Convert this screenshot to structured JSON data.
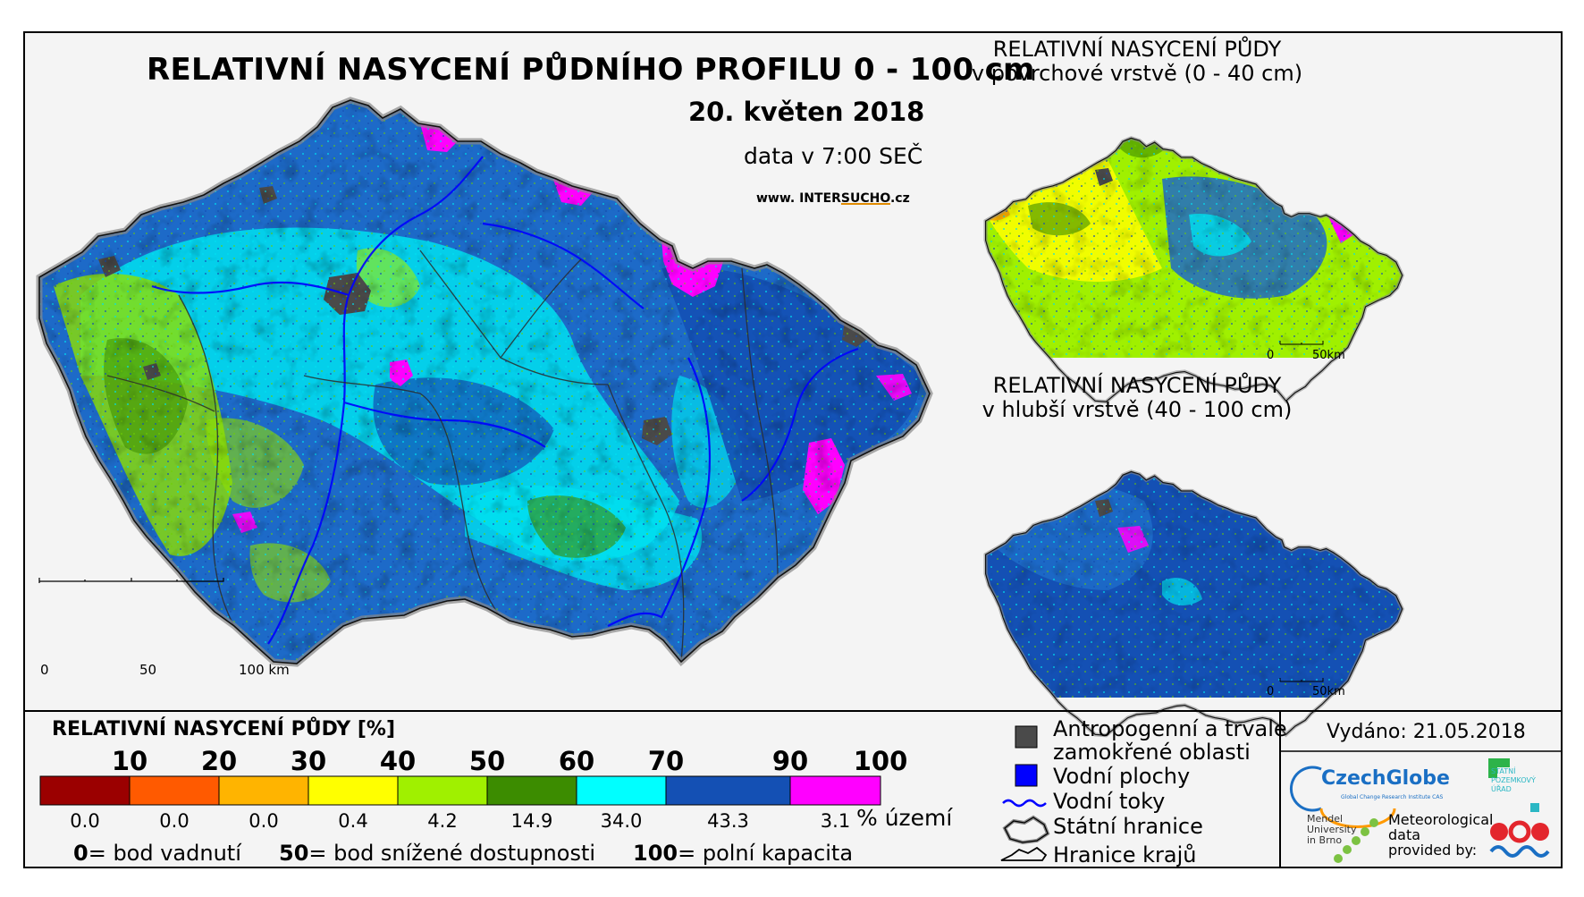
{
  "map": {
    "title": "RELATIVNÍ NASYCENÍ PŮDNÍHO PROFILU 0 - 100 cm",
    "date": "20. květen 2018",
    "data_time": "data v 7:00 SEČ",
    "website": {
      "prefix": "www. INTER",
      "highlight": "SUCHO",
      "suffix": ".cz"
    },
    "scale": {
      "ticks": [
        "0",
        "50",
        "100 km"
      ]
    }
  },
  "insets": [
    {
      "title_line1": "RELATIVNÍ NASYCENÍ PŮDY",
      "title_line2": "v povrchové vrstvě (0 - 40 cm)",
      "scale_ticks": [
        "0",
        "50km"
      ],
      "dominant": "yellow-green"
    },
    {
      "title_line1": "RELATIVNÍ NASYCENÍ PŮDY",
      "title_line2": "v hlubší vrstvě (40 - 100 cm)",
      "scale_ticks": [
        "0",
        "50km"
      ],
      "dominant": "blue"
    }
  ],
  "legend": {
    "title": "RELATIVNÍ NASYCENÍ PŮDY [%]",
    "ticks": [
      "10",
      "20",
      "30",
      "40",
      "50",
      "60",
      "70",
      "90",
      "100"
    ],
    "classes": [
      {
        "color": "#9b0000",
        "percent": "0.0"
      },
      {
        "color": "#ff5a00",
        "percent": "0.0"
      },
      {
        "color": "#ffb400",
        "percent": "0.0"
      },
      {
        "color": "#ffff00",
        "percent": "0.4"
      },
      {
        "color": "#a0f000",
        "percent": "4.2"
      },
      {
        "color": "#3c8c00",
        "percent": "14.9"
      },
      {
        "color": "#00ffff",
        "percent": "34.0"
      },
      {
        "color": "#1450b4",
        "percent": "43.3"
      },
      {
        "color": "#ff00ff",
        "percent": "3.1"
      }
    ],
    "unit": "% území",
    "notes": [
      {
        "value": "0",
        "text": "= bod vadnutí"
      },
      {
        "value": "50",
        "text": "= bod snížené dostupnosti"
      },
      {
        "value": "100",
        "text": "= polní kapacita"
      }
    ]
  },
  "symbols": [
    {
      "icon": "gray-square-icon",
      "color": "#4a4a4a",
      "label_line1": "Antropogenní a trvale",
      "label_line2": "zamokřené oblasti"
    },
    {
      "icon": "blue-square-icon",
      "color": "#0000ff",
      "label_line1": "Vodní plochy"
    },
    {
      "icon": "wavy-line-icon",
      "color": "#0000ff",
      "label_line1": "Vodní toky"
    },
    {
      "icon": "country-outline-icon",
      "color": "#000000",
      "label_line1": "Státní hranice"
    },
    {
      "icon": "region-outline-icon",
      "color": "#000000",
      "label_line1": "Hranice krajů"
    }
  ],
  "issued": "Vydáno: 21.05.2018",
  "logos": {
    "czechglobe": "CzechGlobe",
    "czechglobe_sub": "Global Change Research Institute CAS",
    "spu_line1": "STÁTNÍ",
    "spu_line2": "POZEMKOVÝ",
    "spu_line3": "ÚŘAD",
    "mendel_line1": "Mendel",
    "mendel_line2": "University",
    "mendel_line3": "in Brno",
    "met_line1": "Meteorological",
    "met_line2": "data",
    "met_line3": "provided by:"
  }
}
